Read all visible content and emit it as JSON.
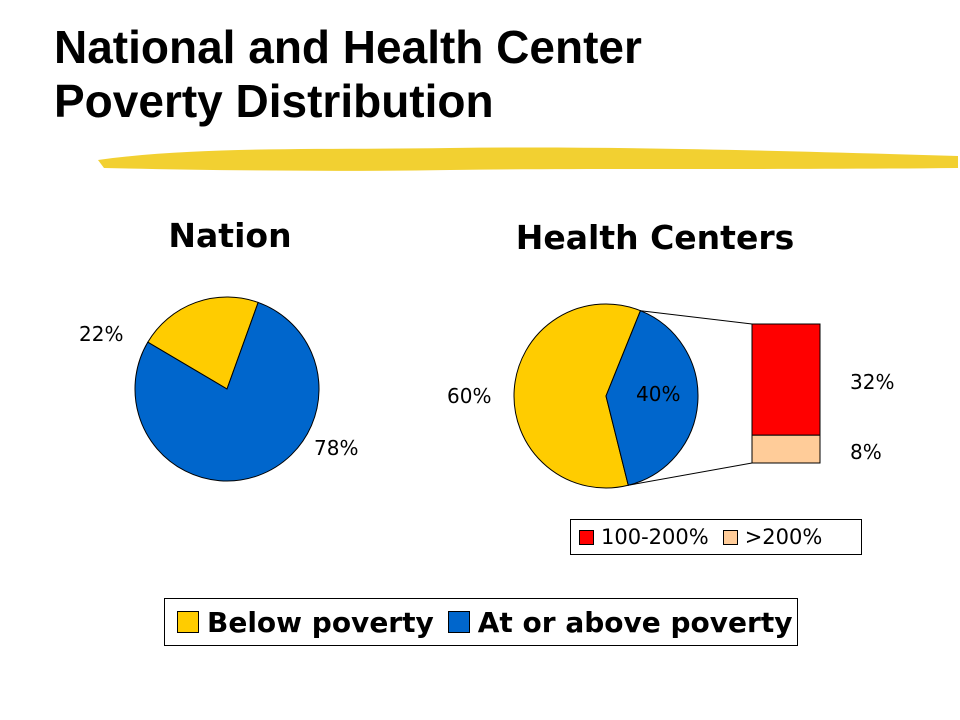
{
  "slide": {
    "title_line1": "National and Health Center",
    "title_line2": "Poverty Distribution"
  },
  "colors": {
    "below_poverty": "#ffcc00",
    "at_or_above_poverty": "#0066cc",
    "range_100_200": "#ff0000",
    "range_over_200": "#ffcc99",
    "highlight": "#f2d031"
  },
  "chart_data": [
    {
      "type": "pie",
      "title": "Nation",
      "slices": [
        {
          "label": "Below poverty",
          "value": 22,
          "display": "22%"
        },
        {
          "label": "At or above poverty",
          "value": 78,
          "display": "78%"
        }
      ]
    },
    {
      "type": "pie",
      "title": "Health Centers",
      "slices": [
        {
          "label": "Below poverty",
          "value": 60,
          "display": "60%"
        },
        {
          "label": "At or above poverty",
          "value": 40,
          "display": "40%"
        }
      ],
      "breakdown": {
        "type": "stacked-bar",
        "of_slice": "At or above poverty",
        "segments": [
          {
            "label": "100-200%",
            "value": 32,
            "display": "32%"
          },
          {
            "label": ">200%",
            "value": 8,
            "display": "8%"
          }
        ]
      }
    }
  ],
  "legend_main": [
    {
      "label": "Below poverty"
    },
    {
      "label": "At or above poverty"
    }
  ],
  "legend_breakdown": [
    {
      "label": "100-200%"
    },
    {
      "label": ">200%"
    }
  ]
}
